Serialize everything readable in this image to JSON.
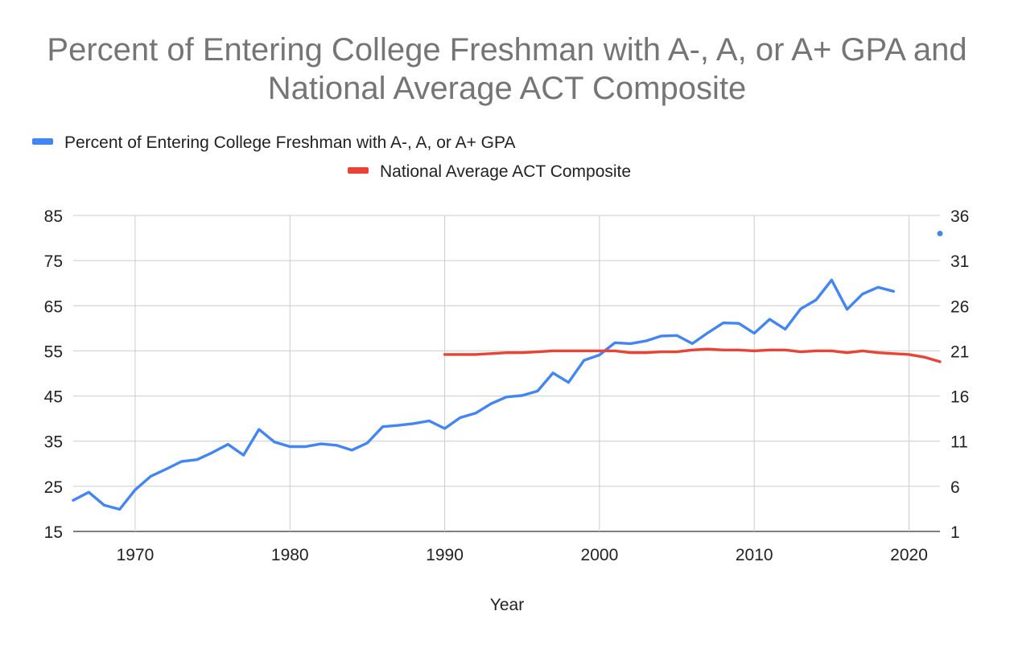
{
  "chart_data": {
    "type": "line",
    "title": "Percent of Entering College Freshman with A-, A, or A+ GPA and National Average ACT Composite",
    "xlabel": "Year",
    "ylabel_left": "",
    "ylabel_right": "",
    "xlim": [
      1966,
      2022
    ],
    "ylim_left": [
      15,
      85
    ],
    "ylim_right": [
      1,
      36
    ],
    "x_ticks": [
      1970,
      1980,
      1990,
      2000,
      2010,
      2020
    ],
    "y_ticks_left": [
      15,
      25,
      35,
      45,
      55,
      65,
      75,
      85
    ],
    "y_ticks_right": [
      1,
      6,
      11,
      16,
      21,
      26,
      31,
      36
    ],
    "grid": true,
    "legend_position": "top",
    "series": [
      {
        "name": "Percent of Entering College Freshman with A-, A, or A+ GPA",
        "axis": "left",
        "color": "#4285f4",
        "x": [
          1966,
          1967,
          1968,
          1969,
          1970,
          1971,
          1972,
          1973,
          1974,
          1975,
          1976,
          1977,
          1978,
          1979,
          1980,
          1981,
          1982,
          1983,
          1984,
          1985,
          1986,
          1987,
          1988,
          1989,
          1990,
          1991,
          1992,
          1993,
          1994,
          1995,
          1996,
          1997,
          1998,
          1999,
          2000,
          2001,
          2002,
          2003,
          2004,
          2005,
          2006,
          2007,
          2008,
          2009,
          2010,
          2011,
          2012,
          2013,
          2014,
          2015,
          2016,
          2017,
          2018,
          2019
        ],
        "values": [
          21.9,
          23.7,
          20.8,
          19.9,
          24.2,
          27.2,
          28.8,
          30.5,
          30.9,
          32.5,
          34.3,
          31.9,
          37.6,
          34.8,
          33.8,
          33.8,
          34.4,
          34.1,
          33,
          34.6,
          38.2,
          38.5,
          38.9,
          39.5,
          37.8,
          40.2,
          41.2,
          43.3,
          44.8,
          45.1,
          46.1,
          50.1,
          48,
          52.9,
          54.1,
          56.8,
          56.6,
          57.2,
          58.3,
          58.4,
          56.6,
          59,
          61.2,
          61.1,
          58.9,
          62,
          59.8,
          64.3,
          66.3,
          70.7,
          64.2,
          67.6,
          69.1,
          68.2
        ]
      },
      {
        "name": "National Average ACT Composite",
        "axis": "right",
        "color": "#ea4335",
        "x": [
          1990,
          1991,
          1992,
          1993,
          1994,
          1995,
          1996,
          1997,
          1998,
          1999,
          2000,
          2001,
          2002,
          2003,
          2004,
          2005,
          2006,
          2007,
          2008,
          2009,
          2010,
          2011,
          2012,
          2013,
          2014,
          2015,
          2016,
          2017,
          2018,
          2019,
          2020,
          2021,
          2022
        ],
        "values": [
          20.6,
          20.6,
          20.6,
          20.7,
          20.8,
          20.8,
          20.9,
          21,
          21,
          21,
          21,
          21,
          20.8,
          20.8,
          20.9,
          20.9,
          21.1,
          21.2,
          21.1,
          21.1,
          21,
          21.1,
          21.1,
          20.9,
          21,
          21,
          20.8,
          21,
          20.8,
          20.7,
          20.6,
          20.3,
          19.8
        ]
      }
    ],
    "extra_points": [
      {
        "series": "Percent of Entering College Freshman with A-, A, or A+ GPA",
        "x": 2022,
        "value": 81,
        "note": "isolated point at right edge"
      }
    ]
  },
  "legend": {
    "item1_label": "Percent of Entering College Freshman with A-, A, or A+ GPA",
    "item2_label": "National Average ACT Composite"
  }
}
